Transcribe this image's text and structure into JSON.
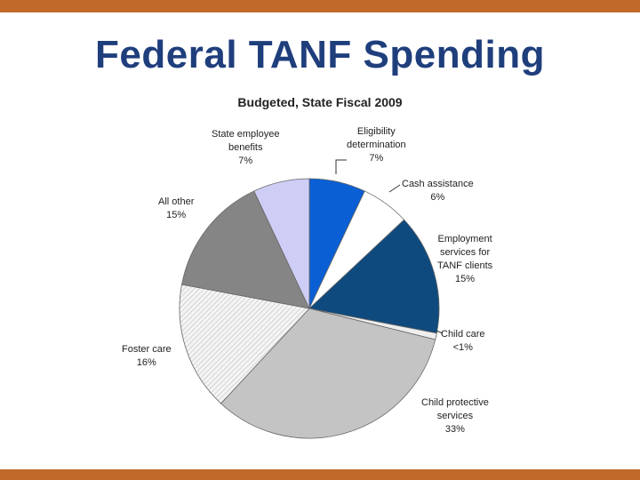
{
  "slide": {
    "title": "Federal TANF Spending"
  },
  "colors": {
    "accent_bar": "#c0692a",
    "title_text": "#1f3e7c"
  },
  "chart_data": {
    "type": "pie",
    "title": "Budgeted, State Fiscal 2009",
    "unit": "%",
    "slices": [
      {
        "label": "Eligibility determination",
        "lines": [
          "Eligibility",
          "determination"
        ],
        "value_label": "7%",
        "value": 7,
        "color": "#0a5fd4",
        "pattern": "none"
      },
      {
        "label": "Cash assistance",
        "lines": [
          "Cash assistance"
        ],
        "value_label": "6%",
        "value": 6,
        "color": "#ffffff",
        "pattern": "none"
      },
      {
        "label": "Employment services for TANF clients",
        "lines": [
          "Employment",
          "services for",
          "TANF clients"
        ],
        "value_label": "15%",
        "value": 15,
        "color": "#0f4a7e",
        "pattern": "none"
      },
      {
        "label": "Child care",
        "lines": [
          "Child care"
        ],
        "value_label": "<1%",
        "value": 0.8,
        "color": "#eeeeee",
        "pattern": "none"
      },
      {
        "label": "Child protective services",
        "lines": [
          "Child protective",
          "services"
        ],
        "value_label": "33%",
        "value": 33,
        "color": "#c4c4c4",
        "pattern": "none"
      },
      {
        "label": "Foster care",
        "lines": [
          "Foster care"
        ],
        "value_label": "16%",
        "value": 16,
        "color": "#f2f2f2",
        "pattern": "diagonal"
      },
      {
        "label": "All other",
        "lines": [
          "All other"
        ],
        "value_label": "15%",
        "value": 15,
        "color": "#858585",
        "pattern": "none"
      },
      {
        "label": "State employee benefits",
        "lines": [
          "State employee",
          "benefits"
        ],
        "value_label": "7%",
        "value": 7,
        "color": "#cdcdf5",
        "pattern": "none"
      }
    ]
  }
}
